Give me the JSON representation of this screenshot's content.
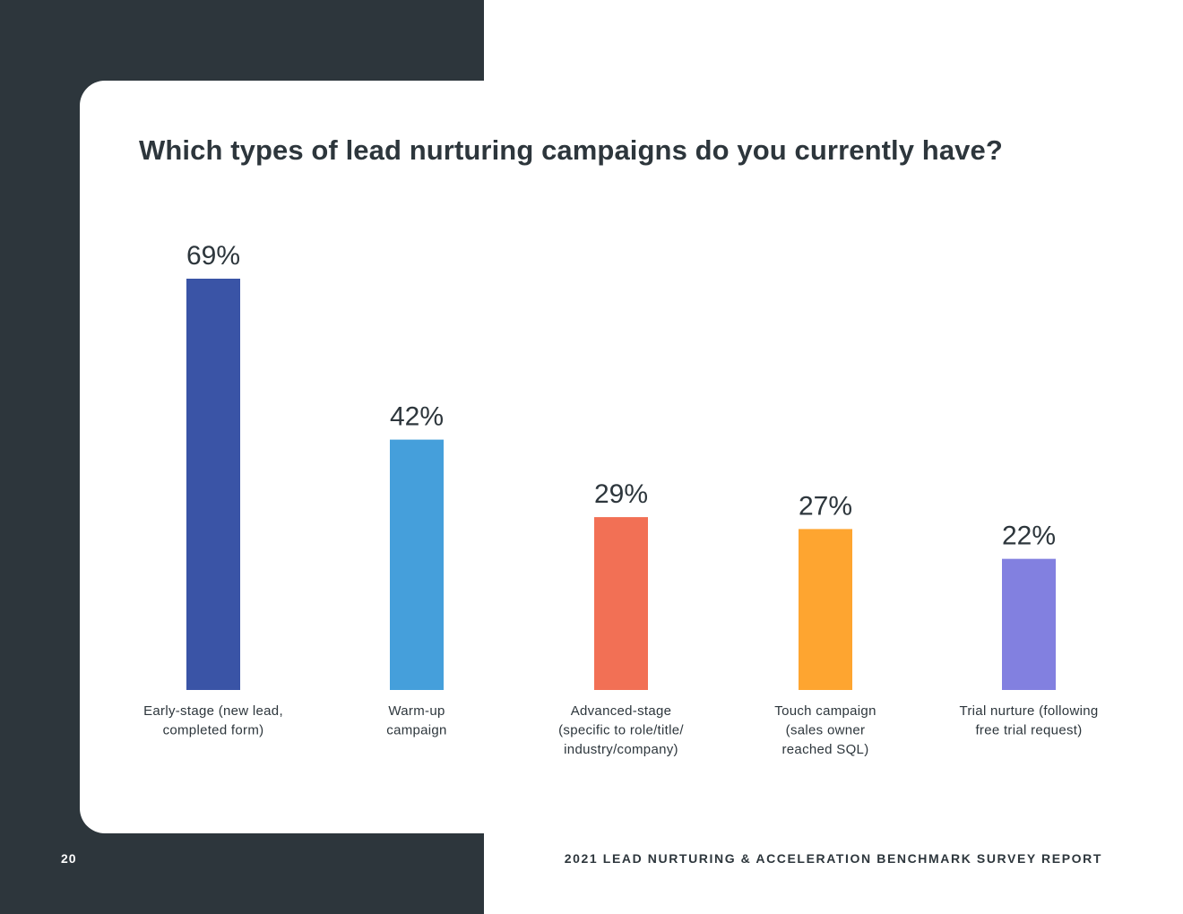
{
  "page": {
    "title": "Which types of lead nurturing campaigns do you currently have?",
    "page_number": "20",
    "footer": "2021 LEAD NURTURING & ACCELERATION BENCHMARK SURVEY REPORT"
  },
  "colors": {
    "dark_panel": "#2d363c",
    "text": "#2d363c"
  },
  "chart_data": {
    "type": "bar",
    "title": "Which types of lead nurturing campaigns do you currently have?",
    "categories": [
      [
        "Early-stage (new lead,",
        "completed form)"
      ],
      [
        "Warm-up",
        "campaign"
      ],
      [
        "Advanced-stage",
        "(specific to role/title/",
        "industry/company)"
      ],
      [
        "Touch campaign",
        "(sales owner",
        "reached SQL)"
      ],
      [
        "Trial nurture (following",
        "free trial request)"
      ]
    ],
    "values": [
      69,
      42,
      29,
      27,
      22
    ],
    "value_labels": [
      "69%",
      "42%",
      "29%",
      "27%",
      "22%"
    ],
    "bar_colors": [
      "#3a54a6",
      "#459fdb",
      "#f27055",
      "#fea530",
      "#8280e0"
    ],
    "ylim": [
      0,
      69
    ],
    "grid": false,
    "legend": "none"
  }
}
